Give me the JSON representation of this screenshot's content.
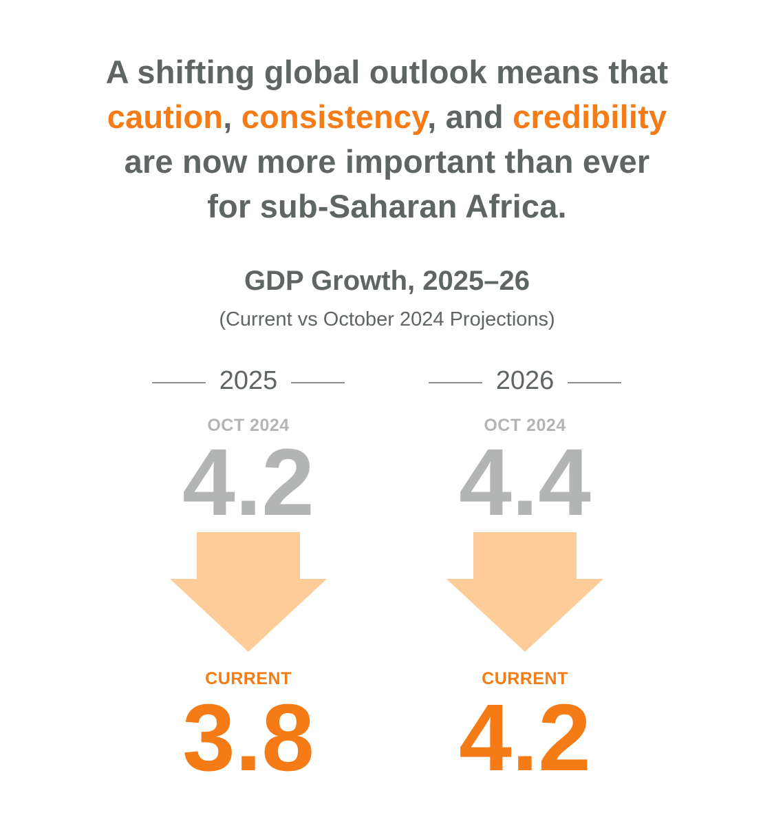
{
  "headline": {
    "line1": "A shifting global outlook means that",
    "line2": {
      "word1": "caution",
      "sep1": ", ",
      "word2": "consistency",
      "sep2": ", and ",
      "word3": "credibility"
    },
    "line3": "are now more important than ever",
    "line4": "for sub-Saharan Africa."
  },
  "chart": {
    "title": "GDP Growth, 2025–26",
    "subtitle": "(Current vs October 2024 Projections)"
  },
  "colors": {
    "accent": "#f47b16",
    "arrow": "#fdcc99",
    "muted": "#b3b5b4",
    "text": "#5f6563"
  },
  "columns": [
    {
      "year": "2025",
      "prior_label": "OCT 2024",
      "prior_value": "4.2",
      "current_label": "CURRENT",
      "current_value": "3.8"
    },
    {
      "year": "2026",
      "prior_label": "OCT 2024",
      "prior_value": "4.4",
      "current_label": "CURRENT",
      "current_value": "4.2"
    }
  ],
  "icons": {
    "arrow": "down-arrow-icon"
  }
}
